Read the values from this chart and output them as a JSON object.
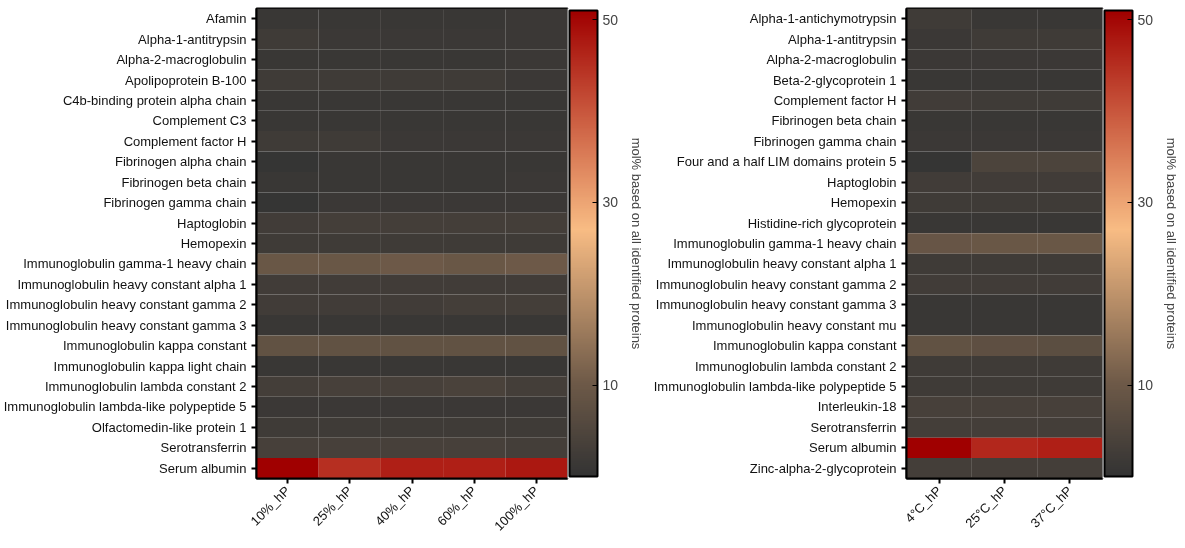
{
  "chart_data": [
    {
      "type": "heatmap",
      "clabel": "mol% based on all identified proteins",
      "clim": [
        0,
        51
      ],
      "cticks": [
        10,
        30,
        50
      ],
      "categories": [
        "10%_hP",
        "25%_hP",
        "40%_hP",
        "60%_hP",
        "100%_hP"
      ],
      "y_categories": [
        "Afamin",
        "Alpha-1-antitrypsin",
        "Alpha-2-macroglobulin",
        "Apolipoprotein B-100",
        "C4b-binding protein alpha chain",
        "Complement C3",
        "Complement factor H",
        "Fibrinogen alpha chain",
        "Fibrinogen beta chain",
        "Fibrinogen gamma chain",
        "Haptoglobin",
        "Hemopexin",
        "Immunoglobulin gamma-1 heavy chain",
        "Immunoglobulin heavy constant alpha 1",
        "Immunoglobulin heavy constant gamma 2",
        "Immunoglobulin heavy constant gamma 3",
        "Immunoglobulin kappa constant",
        "Immunoglobulin kappa light chain",
        "Immunoglobulin lambda constant 2",
        "Immunoglobulin lambda-like polypeptide 5",
        "Olfactomedin-like protein 1",
        "Serotransferrin",
        "Serum albumin"
      ],
      "cells": [
        [
          1,
          1,
          1,
          1,
          1.5
        ],
        [
          2,
          1.5,
          1.5,
          1.5,
          1.5
        ],
        [
          1,
          1,
          1,
          1,
          1.5
        ],
        [
          2,
          2,
          2,
          2,
          1.5
        ],
        [
          1,
          1,
          1,
          1,
          1
        ],
        [
          1,
          1,
          1,
          1,
          1
        ],
        [
          2,
          2,
          1.5,
          1.5,
          1.5
        ],
        [
          0.5,
          1,
          1,
          1,
          1
        ],
        [
          1,
          1,
          1,
          1,
          1.5
        ],
        [
          0.5,
          1.5,
          1.5,
          1.5,
          1.5
        ],
        [
          2.5,
          3,
          3,
          3,
          3
        ],
        [
          2,
          2,
          2,
          2,
          2
        ],
        [
          9.5,
          9.5,
          10,
          9.5,
          10
        ],
        [
          2.5,
          2.5,
          2.5,
          2.5,
          2.5
        ],
        [
          2.5,
          2.5,
          2.5,
          3,
          3
        ],
        [
          1,
          1,
          1,
          1,
          1
        ],
        [
          8,
          8,
          8,
          8,
          8
        ],
        [
          1,
          1,
          1,
          1,
          1
        ],
        [
          3,
          3.5,
          3.5,
          4,
          3
        ],
        [
          1.5,
          1.5,
          1.5,
          1.5,
          1.5
        ],
        [
          2,
          2,
          2,
          2,
          2
        ],
        [
          3.5,
          3.5,
          3.5,
          3.5,
          3
        ],
        [
          51,
          45,
          47,
          47,
          48
        ]
      ]
    },
    {
      "type": "heatmap",
      "clabel": "mol% based on all identified proteins",
      "clim": [
        0,
        51
      ],
      "cticks": [
        10,
        30,
        50
      ],
      "categories": [
        "4°C_hP",
        "25°C_hP",
        "37°C_hP"
      ],
      "y_categories": [
        "Alpha-1-antichymotrypsin",
        "Alpha-1-antitrypsin",
        "Alpha-2-macroglobulin",
        "Beta-2-glycoprotein 1",
        "Complement factor H",
        "Fibrinogen beta chain",
        "Fibrinogen gamma chain",
        "Four and a half LIM domains protein 5",
        "Haptoglobin",
        "Hemopexin",
        "Histidine-rich glycoprotein",
        "Immunoglobulin gamma-1 heavy chain",
        "Immunoglobulin heavy constant alpha 1",
        "Immunoglobulin heavy constant gamma 2",
        "Immunoglobulin heavy constant gamma 3",
        "Immunoglobulin heavy constant mu",
        "Immunoglobulin kappa constant",
        "Immunoglobulin lambda constant 2",
        "Immunoglobulin lambda-like polypeptide 5",
        "Interleukin-18",
        "Serotransferrin",
        "Serum albumin",
        "Zinc-alpha-2-glycoprotein"
      ],
      "cells": [
        [
          2,
          1,
          1
        ],
        [
          1.5,
          2,
          2
        ],
        [
          1.5,
          1.5,
          1.5
        ],
        [
          1,
          1,
          1
        ],
        [
          2.5,
          2,
          2
        ],
        [
          1,
          1,
          1
        ],
        [
          1.5,
          1.5,
          1.5
        ],
        [
          0.5,
          4.5,
          4.5
        ],
        [
          2.5,
          2.5,
          2.5
        ],
        [
          2,
          2,
          2
        ],
        [
          1,
          1,
          1
        ],
        [
          9,
          9.5,
          9.5
        ],
        [
          2,
          2,
          2
        ],
        [
          2.5,
          2.5,
          2.5
        ],
        [
          1,
          1,
          1
        ],
        [
          1,
          1,
          1
        ],
        [
          8,
          7.5,
          7
        ],
        [
          2,
          2,
          2
        ],
        [
          2,
          2,
          2
        ],
        [
          3.5,
          3.5,
          3.5
        ],
        [
          3,
          3,
          3
        ],
        [
          51,
          46,
          47
        ],
        [
          3,
          3,
          3
        ]
      ]
    }
  ]
}
